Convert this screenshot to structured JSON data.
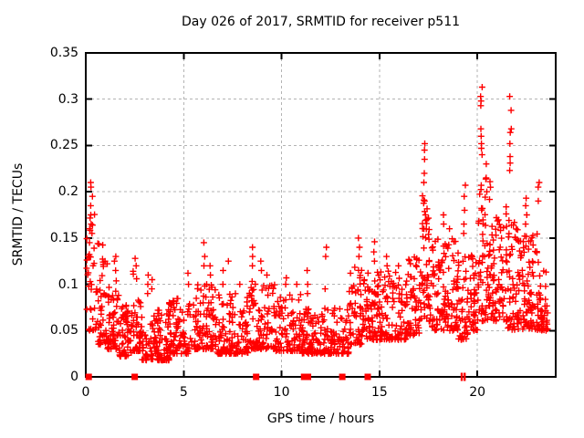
{
  "chart_data": {
    "type": "scatter",
    "title": "Day 026 of 2017, SRMTID for receiver p511",
    "xlabel": "GPS time / hours",
    "ylabel": "SRMTID / TECUs",
    "xlim": [
      0,
      24
    ],
    "ylim": [
      0,
      0.35
    ],
    "xticks": {
      "values": [
        0,
        5,
        10,
        15,
        20
      ],
      "labels": [
        "0",
        "5",
        "10",
        "15",
        "20"
      ]
    },
    "yticks": {
      "values": [
        0,
        0.05,
        0.1,
        0.15,
        0.2,
        0.25,
        0.3,
        0.35
      ],
      "labels": [
        "0",
        "0.05",
        "0.1",
        "0.15",
        "0.2",
        "0.25",
        "0.3",
        "0.35"
      ]
    },
    "grid": {
      "show": true,
      "color": "#b3b3b3",
      "dash": "3,3"
    },
    "colors": {
      "points": "#ff0000",
      "axis": "#000000",
      "background": "#ffffff",
      "text": "#000000"
    },
    "marker": {
      "shape": "plus",
      "size": 7
    },
    "legend": "none",
    "seed": 42,
    "series": [
      {
        "name": "SRMTID",
        "color": "#ff0000",
        "note": "dense 30s-cadence scatter; segments give envelope [x0,x1]->y in [ymin,ymax] with low-bias skew; columns are explicit visible points",
        "segments": [
          {
            "x0": 0.02,
            "x1": 0.15,
            "n": 6,
            "ymin": 0.07,
            "ymax": 0.16,
            "skew": 1.0
          },
          {
            "x0": 0.15,
            "x1": 0.55,
            "n": 26,
            "ymin": 0.05,
            "ymax": 0.21,
            "skew": 1.6
          },
          {
            "x0": 0.55,
            "x1": 1.1,
            "n": 45,
            "ymin": 0.035,
            "ymax": 0.145,
            "skew": 2.0
          },
          {
            "x0": 1.1,
            "x1": 1.7,
            "n": 55,
            "ymin": 0.03,
            "ymax": 0.105,
            "skew": 2.0
          },
          {
            "x0": 1.7,
            "x1": 2.35,
            "n": 60,
            "ymin": 0.022,
            "ymax": 0.08,
            "skew": 2.0
          },
          {
            "x0": 2.35,
            "x1": 2.85,
            "n": 48,
            "ymin": 0.028,
            "ymax": 0.115,
            "skew": 2.2
          },
          {
            "x0": 2.85,
            "x1": 4.25,
            "n": 115,
            "ymin": 0.018,
            "ymax": 0.075,
            "skew": 2.2
          },
          {
            "x0": 4.25,
            "x1": 5.35,
            "n": 90,
            "ymin": 0.025,
            "ymax": 0.085,
            "skew": 2.2
          },
          {
            "x0": 5.35,
            "x1": 6.65,
            "n": 100,
            "ymin": 0.03,
            "ymax": 0.1,
            "skew": 2.2
          },
          {
            "x0": 6.65,
            "x1": 8.35,
            "n": 125,
            "ymin": 0.025,
            "ymax": 0.09,
            "skew": 2.2
          },
          {
            "x0": 8.35,
            "x1": 9.65,
            "n": 100,
            "ymin": 0.03,
            "ymax": 0.105,
            "skew": 2.0
          },
          {
            "x0": 9.65,
            "x1": 11.05,
            "n": 95,
            "ymin": 0.028,
            "ymax": 0.09,
            "skew": 2.0
          },
          {
            "x0": 11.05,
            "x1": 13.45,
            "n": 175,
            "ymin": 0.025,
            "ymax": 0.075,
            "skew": 2.0
          },
          {
            "x0": 13.45,
            "x1": 14.25,
            "n": 65,
            "ymin": 0.035,
            "ymax": 0.12,
            "skew": 1.8
          },
          {
            "x0": 14.25,
            "x1": 16.35,
            "n": 165,
            "ymin": 0.04,
            "ymax": 0.115,
            "skew": 1.8
          },
          {
            "x0": 16.35,
            "x1": 17.05,
            "n": 60,
            "ymin": 0.045,
            "ymax": 0.13,
            "skew": 1.7
          },
          {
            "x0": 17.05,
            "x1": 17.65,
            "n": 55,
            "ymin": 0.06,
            "ymax": 0.2,
            "skew": 1.5
          },
          {
            "x0": 17.65,
            "x1": 19.0,
            "n": 115,
            "ymin": 0.05,
            "ymax": 0.155,
            "skew": 1.8
          },
          {
            "x0": 19.0,
            "x1": 19.6,
            "n": 45,
            "ymin": 0.04,
            "ymax": 0.14,
            "skew": 1.8
          },
          {
            "x0": 19.6,
            "x1": 20.05,
            "n": 42,
            "ymin": 0.05,
            "ymax": 0.135,
            "skew": 1.8
          },
          {
            "x0": 20.05,
            "x1": 20.7,
            "n": 65,
            "ymin": 0.06,
            "ymax": 0.22,
            "skew": 1.6
          },
          {
            "x0": 20.7,
            "x1": 21.55,
            "n": 75,
            "ymin": 0.06,
            "ymax": 0.185,
            "skew": 1.7
          },
          {
            "x0": 21.55,
            "x1": 22.25,
            "n": 65,
            "ymin": 0.05,
            "ymax": 0.17,
            "skew": 1.8
          },
          {
            "x0": 22.25,
            "x1": 23.05,
            "n": 75,
            "ymin": 0.05,
            "ymax": 0.155,
            "skew": 1.8
          },
          {
            "x0": 23.05,
            "x1": 23.6,
            "n": 48,
            "ymin": 0.05,
            "ymax": 0.125,
            "skew": 1.8
          }
        ],
        "columns": [
          {
            "x": 0.02,
            "y": [
              0.073
            ]
          },
          {
            "x": 0.2,
            "y": [
              0.13,
              0.145,
              0.16
            ]
          },
          {
            "x": 0.3,
            "y": [
              0.155,
              0.165,
              0.175,
              0.185,
              0.195,
              0.205,
              0.21
            ]
          },
          {
            "x": 1.5,
            "y": [
              0.115,
              0.125,
              0.13
            ]
          },
          {
            "x": 2.55,
            "y": [
              0.12,
              0.128
            ]
          },
          {
            "x": 3.2,
            "y": [
              0.09,
              0.1,
              0.11
            ]
          },
          {
            "x": 3.35,
            "y": [
              0.095,
              0.105
            ]
          },
          {
            "x": 5.2,
            "y": [
              0.1,
              0.112
            ]
          },
          {
            "x": 6.05,
            "y": [
              0.12,
              0.13,
              0.145
            ]
          },
          {
            "x": 6.35,
            "y": [
              0.11,
              0.12
            ]
          },
          {
            "x": 7.0,
            "y": [
              0.1,
              0.115
            ]
          },
          {
            "x": 7.3,
            "y": [
              0.125
            ]
          },
          {
            "x": 7.9,
            "y": [
              0.1
            ]
          },
          {
            "x": 8.5,
            "y": [
              0.12,
              0.13,
              0.14
            ]
          },
          {
            "x": 8.95,
            "y": [
              0.115,
              0.125
            ]
          },
          {
            "x": 9.3,
            "y": [
              0.11
            ]
          },
          {
            "x": 10.25,
            "y": [
              0.1,
              0.107
            ]
          },
          {
            "x": 10.8,
            "y": [
              0.1
            ]
          },
          {
            "x": 11.3,
            "y": [
              0.09,
              0.1,
              0.115
            ]
          },
          {
            "x": 12.25,
            "y": [
              0.095,
              0.13,
              0.14
            ]
          },
          {
            "x": 13.95,
            "y": [
              0.13,
              0.14,
              0.15
            ]
          },
          {
            "x": 14.7,
            "y": [
              0.125,
              0.135,
              0.146
            ]
          },
          {
            "x": 15.35,
            "y": [
              0.12,
              0.13
            ]
          },
          {
            "x": 16.0,
            "y": [
              0.12
            ]
          },
          {
            "x": 17.3,
            "y": [
              0.16,
              0.175,
              0.19,
              0.21,
              0.22,
              0.235,
              0.245,
              0.252
            ]
          },
          {
            "x": 18.3,
            "y": [
              0.165,
              0.175
            ]
          },
          {
            "x": 18.6,
            "y": [
              0.16
            ]
          },
          {
            "x": 19.35,
            "y": [
              0.155,
              0.165,
              0.18,
              0.195,
              0.207
            ]
          },
          {
            "x": 20.2,
            "y": [
              0.24,
              0.247,
              0.252,
              0.26,
              0.268,
              0.293,
              0.298,
              0.303,
              0.313
            ]
          },
          {
            "x": 20.45,
            "y": [
              0.2,
              0.215,
              0.23
            ]
          },
          {
            "x": 21.7,
            "y": [
              0.223,
              0.231,
              0.238,
              0.252,
              0.264,
              0.268,
              0.288,
              0.303
            ]
          },
          {
            "x": 22.5,
            "y": [
              0.165,
              0.175,
              0.185,
              0.193
            ]
          },
          {
            "x": 23.15,
            "y": [
              0.19,
              0.205,
              0.21
            ]
          }
        ]
      },
      {
        "name": "flags-at-zero",
        "color": "#ff0000",
        "marker": "filled-square",
        "y": 0,
        "square_x": [
          0.15,
          2.5,
          8.7,
          11.15,
          11.35,
          13.1,
          14.4
        ],
        "thin_x": [
          19.2,
          19.35
        ]
      }
    ]
  }
}
